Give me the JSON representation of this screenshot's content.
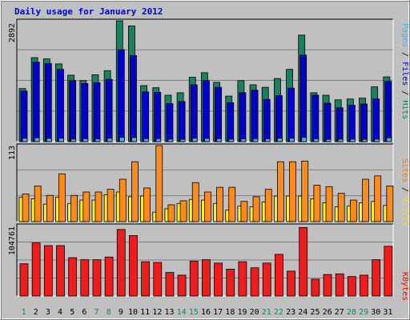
{
  "chart_data": [
    {
      "type": "bar",
      "title": "Daily usage for January 2012",
      "ymax_label": "2892",
      "ymax": 2892,
      "ylim": [
        0,
        2892
      ],
      "grid": true,
      "side_label": {
        "parts": [
          {
            "text": "Pages",
            "color": "#4ab2ec"
          },
          {
            "text": " / ",
            "color": "#000000"
          },
          {
            "text": "Files",
            "color": "#0000cc"
          },
          {
            "text": " / ",
            "color": "#000000"
          },
          {
            "text": "Hits",
            "color": "#1a8060"
          }
        ]
      },
      "categories": [
        "1",
        "2",
        "3",
        "4",
        "5",
        "6",
        "7",
        "8",
        "9",
        "10",
        "11",
        "12",
        "13",
        "14",
        "15",
        "16",
        "17",
        "18",
        "19",
        "20",
        "21",
        "22",
        "23",
        "24",
        "25",
        "26",
        "27",
        "28",
        "29",
        "30",
        "31"
      ],
      "series": [
        {
          "name": "Hits",
          "color": "#1a8060",
          "values": [
            1270,
            2010,
            1980,
            1860,
            1590,
            1460,
            1600,
            1700,
            2892,
            2770,
            1340,
            1290,
            1110,
            1170,
            1540,
            1650,
            1420,
            1090,
            1460,
            1360,
            1300,
            1510,
            1730,
            2550,
            1170,
            1110,
            1000,
            1020,
            1040,
            1310,
            1550
          ]
        },
        {
          "name": "Files",
          "color": "#0000cc",
          "values": [
            1210,
            1900,
            1870,
            1730,
            1460,
            1390,
            1410,
            1490,
            2200,
            2060,
            1190,
            1180,
            910,
            960,
            1360,
            1460,
            1300,
            930,
            1170,
            1230,
            1010,
            1100,
            1280,
            2070,
            1110,
            920,
            810,
            870,
            900,
            1020,
            1440
          ]
        },
        {
          "name": "Pages",
          "color": "#4ab2ec",
          "values": [
            80,
            90,
            75,
            80,
            60,
            70,
            65,
            80,
            100,
            95,
            70,
            70,
            60,
            55,
            80,
            75,
            70,
            60,
            65,
            70,
            65,
            80,
            80,
            100,
            65,
            55,
            60,
            60,
            55,
            60,
            90
          ]
        }
      ]
    },
    {
      "type": "bar",
      "ymax_label": "113",
      "ymax": 113,
      "ylim": [
        0,
        113
      ],
      "grid": true,
      "side_label": {
        "parts": [
          {
            "text": "Sites",
            "color": "#e08020"
          },
          {
            "text": " / ",
            "color": "#000000"
          },
          {
            "text": "Visits",
            "color": "#f0e020"
          }
        ]
      },
      "series": [
        {
          "name": "Visits",
          "color": "#ffee20",
          "values": [
            36,
            34,
            26,
            36,
            27,
            32,
            32,
            40,
            44,
            37,
            38,
            14,
            19,
            27,
            33,
            32,
            27,
            17,
            23,
            22,
            29,
            38,
            38,
            38,
            34,
            28,
            22,
            23,
            28,
            30,
            24
          ]
        },
        {
          "name": "Sites",
          "color": "#ff8c1a",
          "values": [
            41,
            53,
            39,
            71,
            39,
            44,
            44,
            48,
            63,
            89,
            50,
            113,
            25,
            31,
            58,
            44,
            51,
            51,
            30,
            37,
            48,
            89,
            89,
            90,
            54,
            52,
            42,
            32,
            63,
            68,
            53
          ]
        }
      ]
    },
    {
      "type": "bar",
      "ymax_label": "104761",
      "ymax": 104761,
      "ylim": [
        0,
        104761
      ],
      "grid": true,
      "side_label": {
        "parts": [
          {
            "text": "KBytes",
            "color": "#ff0000"
          }
        ]
      },
      "series": [
        {
          "name": "KBytes",
          "color": "#ee1c1c",
          "values": [
            48000,
            79000,
            75000,
            75000,
            57000,
            54000,
            54000,
            58000,
            99000,
            90000,
            51000,
            50000,
            35000,
            31000,
            52000,
            54000,
            49000,
            40000,
            51000,
            42000,
            49000,
            62000,
            37000,
            102000,
            25000,
            32000,
            33000,
            29000,
            31000,
            54000,
            74000
          ]
        }
      ]
    }
  ],
  "day_label_colors": [
    "#1a8060",
    "#000000",
    "#000000",
    "#000000",
    "#000000",
    "#000000",
    "#1a8060",
    "#1a8060",
    "#000000",
    "#000000",
    "#000000",
    "#000000",
    "#000000",
    "#1a8060",
    "#1a8060",
    "#000000",
    "#000000",
    "#000000",
    "#000000",
    "#000000",
    "#1a8060",
    "#1a8060",
    "#000000",
    "#000000",
    "#000000",
    "#000000",
    "#000000",
    "#1a8060",
    "#1a8060",
    "#000000",
    "#000000"
  ]
}
